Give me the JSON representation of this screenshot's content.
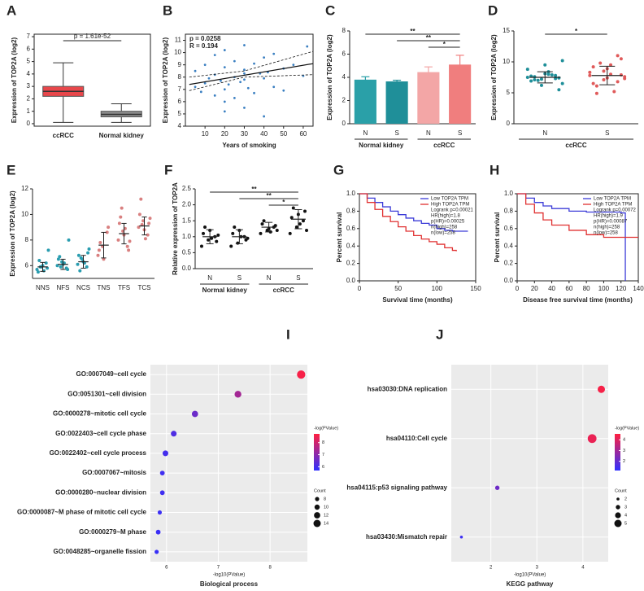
{
  "chart_data": [
    {
      "type": "box",
      "label": "A",
      "ylabel": "Expression of TOP2A (log2)",
      "categories": [
        "ccRCC",
        "Normal kidney"
      ],
      "colors": [
        "#e8474b",
        "#8c8c8c"
      ],
      "boxes": [
        {
          "min": 0.1,
          "q1": 2.2,
          "median": 2.6,
          "q3": 3.0,
          "max": 4.9
        },
        {
          "min": 0.1,
          "q1": 0.55,
          "median": 0.75,
          "q3": 1.0,
          "max": 1.6
        }
      ],
      "annotation": "p = 1.61e-52",
      "ylim": [
        -0.2,
        7.2
      ],
      "yticks": [
        0,
        1,
        2,
        3,
        4,
        5,
        6,
        7
      ]
    },
    {
      "type": "scatter",
      "label": "B",
      "xlabel": "Years of smoking",
      "ylabel": "Expression of TOP2A (log2)",
      "annotations": [
        "p = 0.0258",
        "R = 0.194"
      ],
      "color": "#3a7fc1",
      "x": [
        5,
        5,
        8,
        10,
        10,
        12,
        15,
        15,
        15,
        18,
        20,
        20,
        20,
        20,
        22,
        25,
        25,
        25,
        28,
        30,
        30,
        30,
        30,
        32,
        35,
        35,
        38,
        40,
        40,
        40,
        42,
        45,
        45,
        50,
        50,
        55,
        60,
        62,
        30,
        20
      ],
      "y": [
        7.2,
        8.5,
        6.8,
        7.5,
        9.0,
        7.9,
        6.5,
        8.2,
        9.8,
        7.7,
        5.2,
        7.0,
        8.8,
        10.2,
        7.4,
        6.3,
        8.0,
        9.3,
        7.6,
        5.5,
        7.8,
        8.6,
        10.6,
        7.1,
        6.7,
        9.1,
        8.3,
        4.8,
        7.9,
        9.6,
        8.4,
        7.2,
        9.9,
        6.9,
        8.7,
        9.0,
        8.1,
        10.5,
        8.3,
        6.0
      ],
      "lines": [
        {
          "x": [
            2,
            65
          ],
          "y": [
            7.4,
            9.1
          ]
        },
        {
          "x": [
            2,
            30,
            65
          ],
          "y": [
            8.0,
            8.5,
            10.1
          ]
        },
        {
          "x": [
            2,
            30,
            65
          ],
          "y": [
            6.9,
            8.0,
            8.2
          ]
        }
      ],
      "xlim": [
        0,
        65
      ],
      "xticks": [
        10,
        20,
        30,
        40,
        50,
        60
      ],
      "ylim": [
        4,
        11.5
      ],
      "yticks": [
        4,
        5,
        6,
        7,
        8,
        9,
        10,
        11
      ]
    },
    {
      "type": "bar",
      "label": "C",
      "ylabel": "Expression of TOP2A (log2)",
      "categories": [
        "N",
        "S",
        "N",
        "S"
      ],
      "groups": [
        "Normal kidney",
        "ccRCC"
      ],
      "values": [
        3.8,
        3.65,
        4.45,
        5.1
      ],
      "errors": [
        0.25,
        0.1,
        0.45,
        0.8
      ],
      "colors": [
        "#2aa0a8",
        "#1f8f99",
        "#f3a6a6",
        "#f07e7e"
      ],
      "significance": [
        "**",
        "**",
        "*"
      ],
      "ylim": [
        0,
        8
      ],
      "yticks": [
        0,
        2,
        4,
        6,
        8
      ]
    },
    {
      "type": "dot",
      "label": "D",
      "ylabel": "Expression of TOP2A (log2)",
      "categories": [
        "N",
        "S"
      ],
      "groups": [
        "ccRCC"
      ],
      "values": [
        7.5,
        7.8
      ],
      "errors": [
        0.9,
        1.5
      ],
      "points": [
        [
          7.5,
          7.2,
          7.8,
          6.9,
          8.1,
          7.4,
          7.6,
          8.4,
          6.5,
          7.0,
          7.9,
          8.8,
          6.2,
          7.3,
          7.7,
          9.5,
          5.5,
          7.1,
          8.0,
          10.2
        ],
        [
          7.8,
          8.5,
          6.8,
          9.2,
          7.4,
          10.5,
          6.1,
          8.0,
          7.6,
          9.8,
          5.2,
          8.3,
          7.1,
          11.0,
          6.5,
          8.9,
          7.9,
          4.9,
          9.5,
          7.3
        ]
      ],
      "colors": [
        "#1f8f99",
        "#e05a5a"
      ],
      "significance": [
        "*"
      ],
      "ylim": [
        0,
        15
      ],
      "yticks": [
        0,
        5,
        10,
        15
      ]
    },
    {
      "type": "dot",
      "label": "E",
      "ylabel": "Expression of TOP2A (log2)",
      "categories": [
        "NNS",
        "NFS",
        "NCS",
        "TNS",
        "TFS",
        "TCS"
      ],
      "values": [
        5.9,
        6.1,
        6.3,
        7.6,
        8.5,
        9.1
      ],
      "errors": [
        0.35,
        0.4,
        0.5,
        1.0,
        0.8,
        0.7
      ],
      "points": [
        [
          5.7,
          5.9,
          6.2,
          5.5,
          6.0,
          5.8,
          6.4,
          5.6,
          7.2,
          5.9
        ],
        [
          6.0,
          6.3,
          5.8,
          6.5,
          6.1,
          5.7,
          6.7,
          6.2,
          8.0,
          5.9
        ],
        [
          6.1,
          6.5,
          5.9,
          6.8,
          6.3,
          7.0,
          5.6,
          6.2,
          7.3,
          6.6
        ],
        [
          6.8,
          7.5,
          8.6,
          7.2,
          6.5,
          9.0,
          7.8
        ],
        [
          8.0,
          8.7,
          7.5,
          9.3,
          8.4,
          7.2,
          9.8,
          8.9,
          7.9,
          10.5
        ],
        [
          9.0,
          9.5,
          8.4,
          10.0,
          8.8,
          9.3,
          11.2,
          8.1,
          9.7,
          9.2
        ]
      ],
      "colors": [
        "#2a9db0",
        "#2a9db0",
        "#2a9db0",
        "#d98080",
        "#d98080",
        "#d98080"
      ],
      "ylim": [
        5,
        12
      ],
      "yticks": [
        6,
        8,
        10,
        12
      ]
    },
    {
      "type": "dot",
      "label": "F",
      "ylabel": "Relative expression of TOP2A",
      "categories": [
        "N",
        "S",
        "N",
        "S"
      ],
      "groups": [
        "Normal kidney",
        "ccRCC"
      ],
      "values": [
        1.0,
        1.0,
        1.3,
        1.55
      ],
      "errors": [
        0.22,
        0.22,
        0.15,
        0.3
      ],
      "points": [
        [
          0.7,
          0.9,
          1.0,
          1.1,
          1.2,
          0.85,
          1.3,
          0.95,
          1.05
        ],
        [
          0.7,
          0.8,
          1.0,
          1.1,
          1.2,
          0.9,
          1.3,
          1.0,
          0.95
        ],
        [
          1.1,
          1.2,
          1.3,
          1.4,
          1.25,
          1.35,
          1.5,
          1.15,
          1.2
        ],
        [
          1.1,
          1.3,
          1.5,
          1.6,
          1.7,
          1.8,
          1.9,
          1.4,
          1.2
        ]
      ],
      "colors": [
        "#111111",
        "#111111",
        "#111111",
        "#111111"
      ],
      "significance": [
        "**",
        "**",
        "*"
      ],
      "ylim": [
        0,
        2.5
      ],
      "yticks": [
        {
          "value": 0,
          "label": "0.0"
        },
        0.5,
        {
          "value": 1,
          "label": "1.0"
        },
        1.5,
        {
          "value": 2,
          "label": "2.0"
        },
        2.5
      ]
    },
    {
      "type": "survival",
      "label": "G",
      "xlabel": "Survival time (months)",
      "ylabel": "Percent survival",
      "series": [
        {
          "name": "Low TOP2A TPM",
          "color": "#3c3cd8",
          "x": [
            0,
            10,
            20,
            30,
            40,
            50,
            60,
            70,
            80,
            90,
            100,
            110,
            120,
            130,
            140
          ],
          "values": [
            1,
            0.95,
            0.9,
            0.85,
            0.8,
            0.76,
            0.72,
            0.69,
            0.66,
            0.64,
            0.6,
            0.58,
            0.57,
            0.57,
            0.57
          ]
        },
        {
          "name": "High TOP2A TPM",
          "color": "#e03030",
          "x": [
            0,
            10,
            20,
            30,
            40,
            50,
            60,
            70,
            80,
            90,
            100,
            110,
            120,
            125
          ],
          "values": [
            1,
            0.9,
            0.82,
            0.74,
            0.68,
            0.62,
            0.57,
            0.52,
            0.48,
            0.45,
            0.42,
            0.38,
            0.35,
            0.34
          ]
        }
      ],
      "annotations": [
        "Logrank p=0.00021",
        "HR(high)=1.8",
        "p(HR)=0.00025",
        "n(high)=258",
        "n(low)=258"
      ],
      "xlim": [
        0,
        150
      ],
      "xticks": [
        0,
        50,
        100,
        150
      ],
      "ylim": [
        0,
        1
      ],
      "yticks": [
        {
          "value": 0,
          "label": "0.0"
        },
        0.2,
        0.4,
        0.6,
        0.8,
        {
          "value": 1,
          "label": "1.0"
        }
      ]
    },
    {
      "type": "survival",
      "label": "H",
      "xlabel": "Disease free survival time (months)",
      "ylabel": "Percent survival",
      "series": [
        {
          "name": "Low TOP2A TPM",
          "color": "#3c3cd8",
          "x": [
            0,
            10,
            20,
            30,
            40,
            60,
            80,
            120,
            125
          ],
          "values": [
            1,
            0.95,
            0.9,
            0.86,
            0.83,
            0.8,
            0.79,
            0.78,
            0.0
          ]
        },
        {
          "name": "High TOP2A TPM",
          "color": "#e03030",
          "x": [
            0,
            10,
            20,
            30,
            40,
            60,
            80,
            100,
            140
          ],
          "values": [
            1,
            0.88,
            0.78,
            0.7,
            0.64,
            0.58,
            0.53,
            0.5,
            0.5
          ]
        }
      ],
      "annotations": [
        "Logrank p=0.00072",
        "HR(high)=1.9",
        "p(HR)=0.00087",
        "n(high)=258",
        "n(low)=258"
      ],
      "xlim": [
        0,
        140
      ],
      "xticks": [
        0,
        20,
        40,
        60,
        80,
        100,
        120,
        140
      ],
      "ylim": [
        0,
        1
      ],
      "yticks": [
        {
          "value": 0,
          "label": "0.0"
        },
        0.2,
        0.4,
        0.6,
        0.8,
        {
          "value": 1,
          "label": "1.0"
        }
      ]
    },
    {
      "type": "bubble",
      "label": "I",
      "title": "Biological process",
      "xlabel": "-log10(PValue)",
      "categories": [
        "GO:0007049~cell cycle",
        "GO:0051301~cell division",
        "GO:0000278~mitotic cell cycle",
        "GO:0022403~cell cycle phase",
        "GO:0022402~cell cycle process",
        "GO:0007067~mitosis",
        "GO:0000280~nuclear division",
        "GO:0000087~M phase of mitotic cell cycle",
        "GO:0000279~M phase",
        "GO:0048285~organelle fission"
      ],
      "values": [
        8.6,
        7.38,
        6.55,
        6.14,
        5.98,
        5.92,
        5.92,
        5.87,
        5.84,
        5.81
      ],
      "sizes": [
        16,
        13,
        12,
        11,
        11,
        9,
        9,
        8,
        9,
        8
      ],
      "colors": [
        "#3030ff",
        "#ff2040"
      ],
      "colorbar": {
        "title": "-log(PValue)",
        "ticks": [
          6,
          7,
          8
        ]
      },
      "size_legend": {
        "title": "Count",
        "values": [
          8,
          10,
          12,
          14
        ]
      },
      "xlim": [
        5.69,
        8.72
      ],
      "xticks": [
        6,
        7,
        8
      ]
    },
    {
      "type": "bubble",
      "label": "J",
      "title": "KEGG pathway",
      "xlabel": "-log10(PValue)",
      "categories": [
        "hsa03030:DNA replication",
        "hsa04110:Cell cycle",
        "hsa04115:p53 signaling pathway",
        "hsa03430:Mismatch repair"
      ],
      "values": [
        4.4,
        4.2,
        2.14,
        1.36
      ],
      "sizes": [
        5,
        6,
        3,
        2
      ],
      "colors": [
        "#3030ff",
        "#ff2040"
      ],
      "colorbar": {
        "title": "-log(PValue)",
        "ticks": [
          2,
          3,
          4
        ]
      },
      "size_legend": {
        "title": "Count",
        "values": [
          2,
          3,
          4,
          5
        ]
      },
      "xlim": [
        1.14,
        4.55
      ],
      "xticks": [
        2,
        3,
        4
      ]
    }
  ]
}
